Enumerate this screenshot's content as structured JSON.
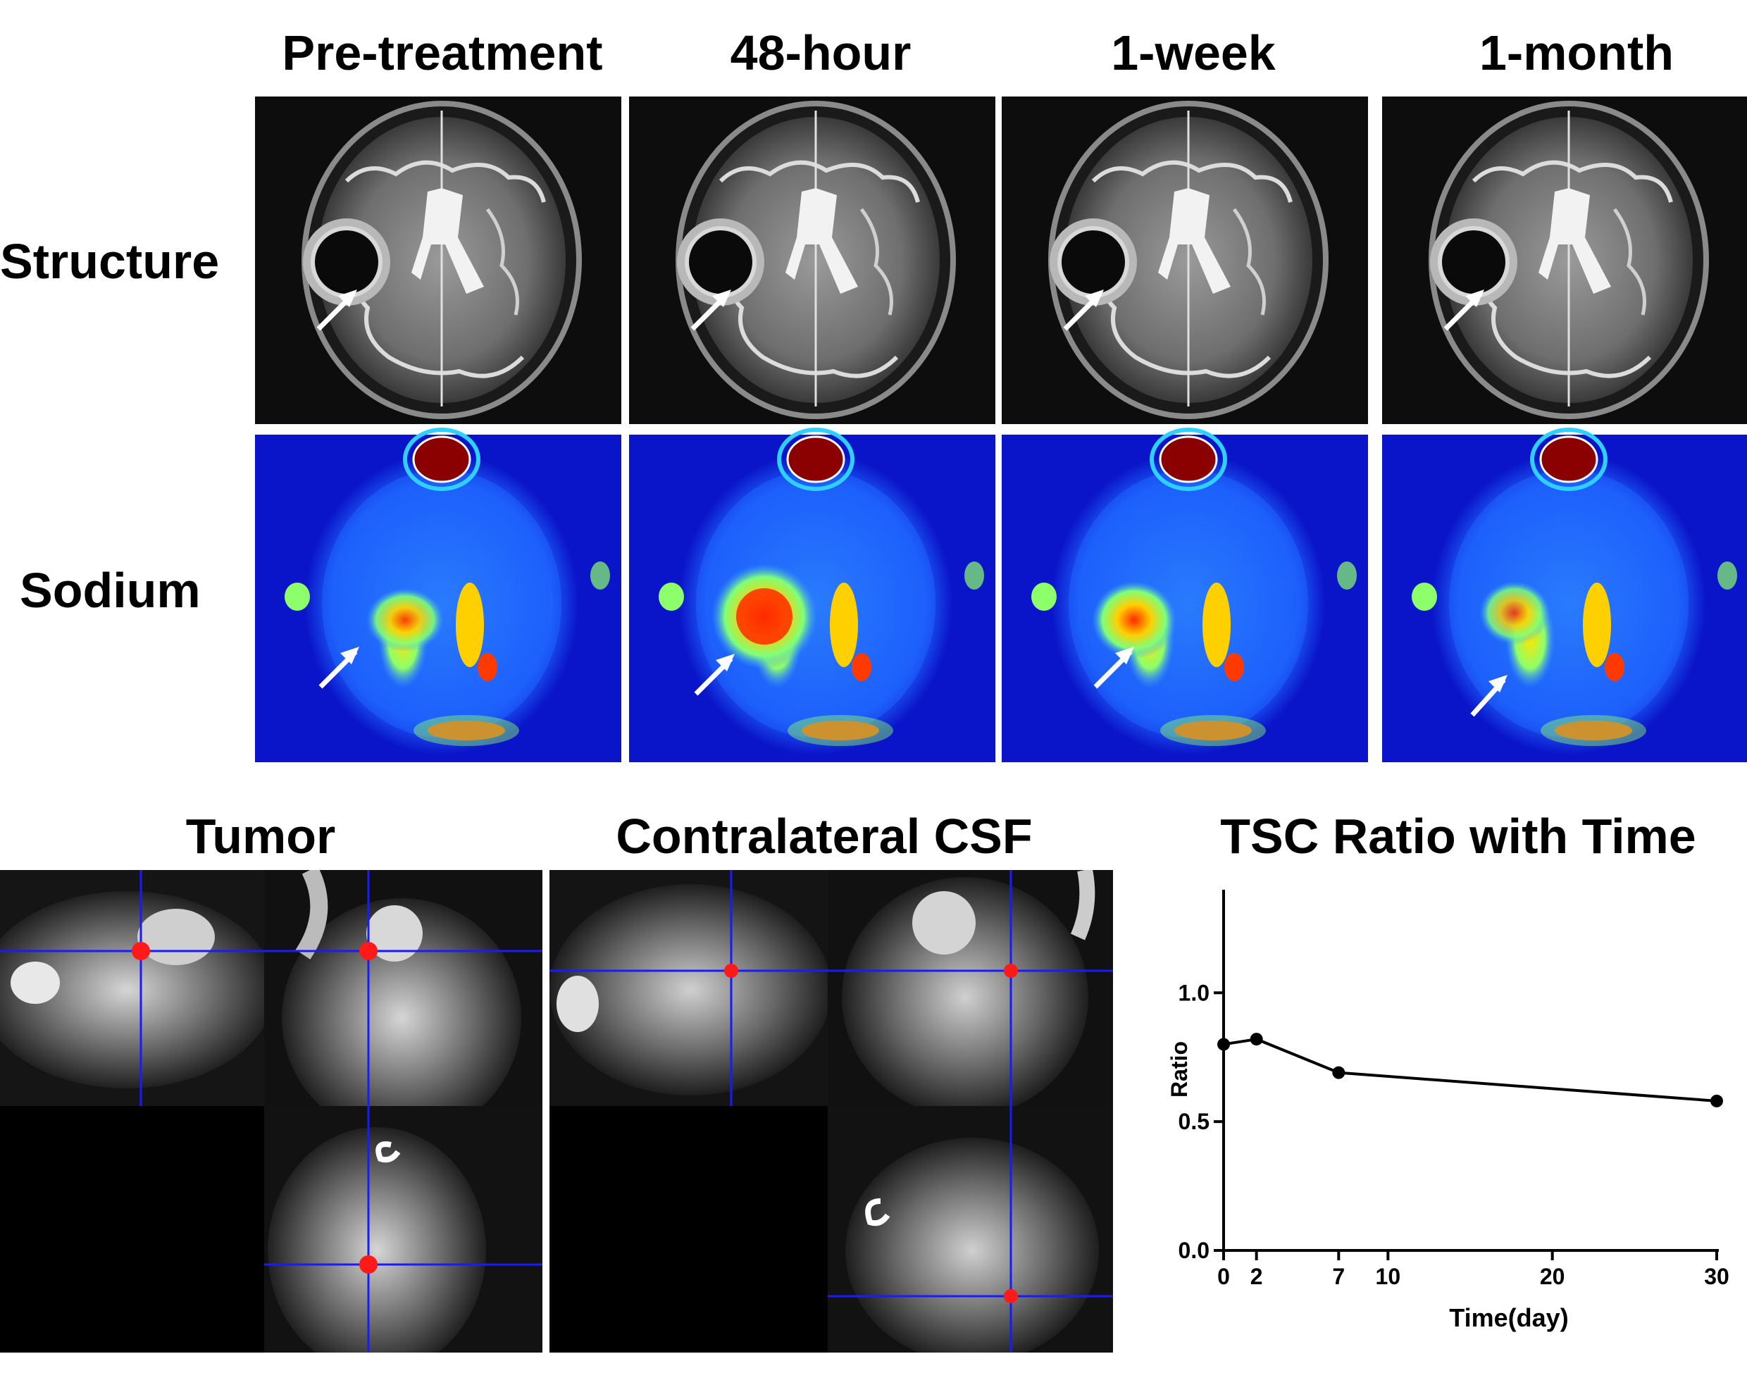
{
  "figure": {
    "column_headers": [
      "Pre-treatment",
      "48-hour",
      "1-week",
      "1-month"
    ],
    "row_labels": {
      "structure": "Structure",
      "sodium": "Sodium"
    },
    "section_titles": {
      "tumor": "Tumor",
      "csf": "Contralateral CSF",
      "chart": "TSC Ratio with Time"
    },
    "colors": {
      "crosshair": "#1a1aff",
      "marker": "#ff1a1a",
      "sodium_background": "#0a14c8",
      "arrow": "#ffffff"
    }
  },
  "chart_data": {
    "type": "line",
    "title": "TSC Ratio with Time",
    "xlabel": "Time(day)",
    "ylabel": "Ratio",
    "x": [
      0,
      2,
      7,
      30
    ],
    "series": [
      {
        "values": [
          0.8,
          0.82,
          0.69,
          0.58
        ]
      }
    ],
    "xlim": [
      0,
      30
    ],
    "ylim": [
      0,
      1.4
    ],
    "xticks": [
      0,
      2,
      7,
      10,
      20,
      30
    ],
    "yticks": [
      0.0,
      0.5,
      1.0
    ],
    "ytick_labels": [
      "0.0",
      "0.5",
      "1.0"
    ],
    "grid": false
  }
}
